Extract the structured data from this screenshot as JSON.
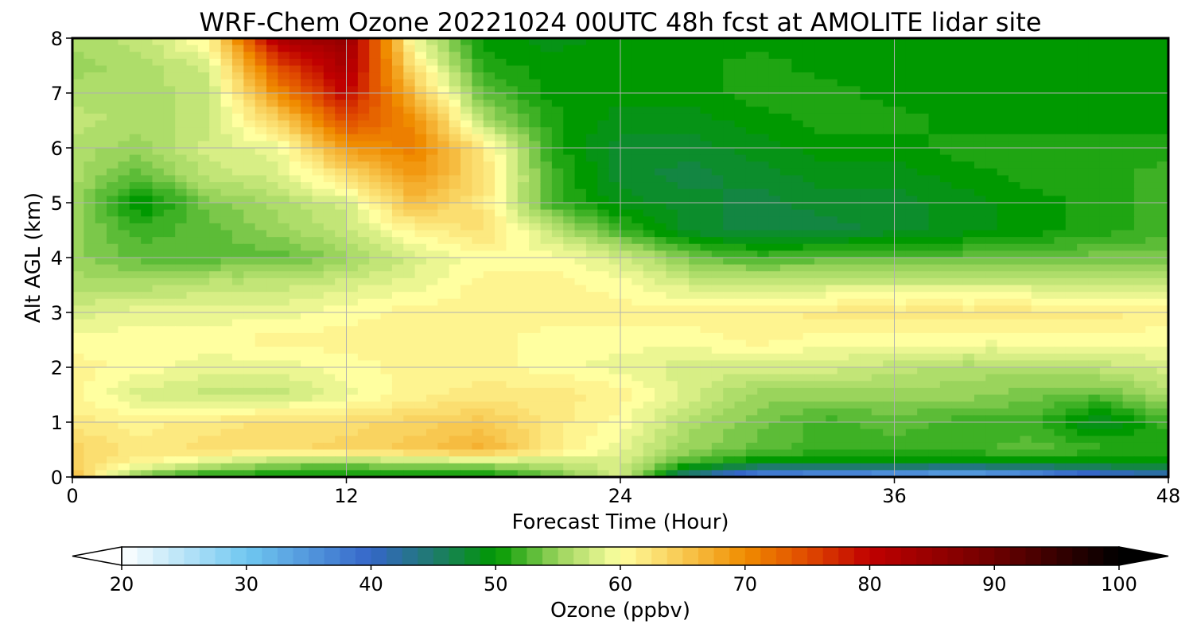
{
  "chart_data": {
    "type": "heatmap",
    "title": "WRF-Chem Ozone  20221024 00UTC 48h fcst at AMOLITE lidar site",
    "xlabel": "Forecast Time (Hour)",
    "ylabel": "Alt AGL (km)",
    "xlim": [
      0,
      48
    ],
    "ylim": [
      0,
      8
    ],
    "x_ticks": [
      0,
      12,
      24,
      36,
      48
    ],
    "y_ticks": [
      0,
      1,
      2,
      3,
      4,
      5,
      6,
      7,
      8
    ],
    "grid": true,
    "x_hours": [
      0,
      3,
      6,
      9,
      12,
      15,
      18,
      21,
      24,
      27,
      30,
      33,
      36,
      39,
      42,
      45,
      48
    ],
    "y_km": [
      0,
      0.25,
      0.5,
      1,
      1.5,
      2,
      2.5,
      3,
      3.5,
      4,
      4.5,
      5,
      5.5,
      6,
      6.5,
      7,
      7.5,
      8
    ],
    "values_ppbv": [
      [
        66,
        53,
        50,
        50,
        50,
        50,
        49,
        53,
        58,
        43,
        35,
        33,
        32,
        30,
        33,
        38,
        40
      ],
      [
        64,
        61,
        58,
        55,
        54,
        56,
        56,
        57,
        58,
        52,
        49,
        49,
        49,
        49,
        49,
        49,
        50
      ],
      [
        64,
        62,
        63,
        63,
        64,
        65,
        67,
        62,
        59,
        55,
        53,
        52,
        52,
        52,
        53,
        52,
        51
      ],
      [
        62,
        61,
        62,
        63,
        63,
        64,
        65,
        62,
        60,
        56,
        54,
        52,
        53,
        52,
        52,
        48,
        52
      ],
      [
        61,
        58,
        57,
        57,
        59,
        61,
        62,
        62,
        61,
        58,
        55,
        55,
        55,
        55,
        54,
        53,
        56
      ],
      [
        61,
        60,
        59,
        59,
        60,
        61,
        61,
        60,
        59,
        58,
        58,
        58,
        57,
        56,
        56,
        57,
        58
      ],
      [
        60,
        60,
        60,
        61,
        61,
        61,
        61,
        60,
        60,
        60,
        61,
        60,
        60,
        60,
        60,
        60,
        60
      ],
      [
        58,
        59,
        59,
        59,
        60,
        61,
        61,
        61,
        61,
        61,
        61,
        62,
        62,
        62,
        62,
        62,
        61
      ],
      [
        56,
        56,
        57,
        57,
        58,
        59,
        61,
        61,
        60,
        58,
        58,
        58,
        58,
        58,
        58,
        57,
        57
      ],
      [
        55,
        53,
        53,
        53,
        55,
        58,
        60,
        60,
        58,
        54,
        52,
        53,
        53,
        53,
        53,
        54,
        54
      ],
      [
        55,
        52,
        53,
        55,
        57,
        61,
        63,
        57,
        52,
        48,
        47,
        47,
        48,
        49,
        50,
        51,
        52
      ],
      [
        55,
        49,
        54,
        56,
        58,
        66,
        62,
        52,
        49,
        48,
        47,
        48,
        48,
        49,
        50,
        51,
        52
      ],
      [
        56,
        53,
        57,
        58,
        63,
        69,
        63,
        52,
        48,
        47,
        48,
        49,
        49,
        50,
        51,
        51,
        52
      ],
      [
        56,
        55,
        58,
        59,
        69,
        71,
        62,
        51,
        48,
        48,
        49,
        50,
        50,
        51,
        51,
        51,
        51
      ],
      [
        57,
        56,
        57,
        64,
        75,
        70,
        56,
        51,
        49,
        49,
        50,
        51,
        51,
        50,
        50,
        50,
        50
      ],
      [
        56,
        56,
        57,
        70,
        80,
        66,
        53,
        50,
        50,
        50,
        51,
        51,
        50,
        50,
        50,
        50,
        50
      ],
      [
        55,
        56,
        58,
        75,
        83,
        62,
        51,
        50,
        50,
        50,
        51,
        50,
        50,
        50,
        50,
        50,
        50
      ],
      [
        56,
        57,
        61,
        83,
        85,
        59,
        50,
        49,
        50,
        50,
        50,
        50,
        50,
        50,
        50,
        50,
        50
      ]
    ],
    "colorbar": {
      "label": "Ozone  (ppbv)",
      "min": 20,
      "max": 100,
      "ticks": [
        20,
        30,
        40,
        50,
        60,
        70,
        80,
        90,
        100
      ],
      "extend": "both",
      "stops": [
        {
          "v": 20,
          "c": "#ffffff"
        },
        {
          "v": 30,
          "c": "#70c8f0"
        },
        {
          "v": 40,
          "c": "#3566c8"
        },
        {
          "v": 45,
          "c": "#1f7a6e"
        },
        {
          "v": 50,
          "c": "#009900"
        },
        {
          "v": 55,
          "c": "#9ad45c"
        },
        {
          "v": 60,
          "c": "#ffffa0"
        },
        {
          "v": 65,
          "c": "#f8c850"
        },
        {
          "v": 70,
          "c": "#f08c00"
        },
        {
          "v": 75,
          "c": "#e04a00"
        },
        {
          "v": 80,
          "c": "#c00000"
        },
        {
          "v": 90,
          "c": "#6e0000"
        },
        {
          "v": 100,
          "c": "#000000"
        }
      ]
    }
  }
}
